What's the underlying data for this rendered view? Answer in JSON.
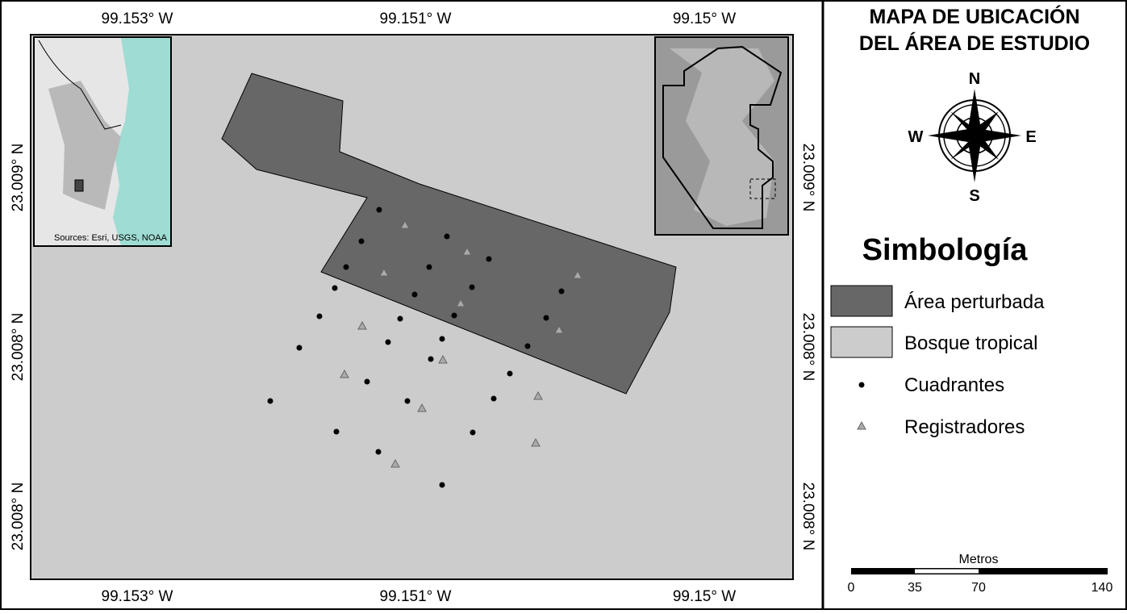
{
  "map": {
    "top_labels": [
      "99.153° W",
      "99.151° W",
      "99.15° W"
    ],
    "bottom_labels": [
      "99.153° W",
      "99.151° W",
      "99.15° W"
    ],
    "left_labels": [
      "23.009° N",
      "23.008° N",
      "23.008° N"
    ],
    "right_labels": [
      "23.009° N",
      "23.008° N",
      "23.008° N"
    ],
    "inset_credit": "Sources: Esri, USGS, NOAA"
  },
  "panel": {
    "title_lines": [
      "MAPA DE UBICACIÓN",
      "DEL ÁREA DE ESTUDIO"
    ],
    "compass": {
      "north": "N",
      "south": "S",
      "east": "E",
      "west": "W"
    },
    "legend_title": "Simbología",
    "legend": [
      "Área perturbada",
      "Bosque tropical",
      "Cuadrantes",
      "Registradores"
    ],
    "scale": {
      "unit": "Metros",
      "labels": [
        "0",
        "35",
        "70",
        "140"
      ]
    }
  }
}
